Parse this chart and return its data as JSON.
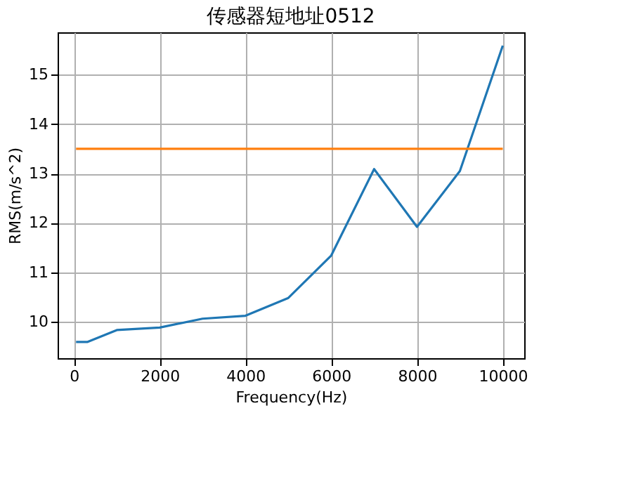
{
  "chart_data": {
    "type": "line",
    "title": "传感器短地址0512",
    "xlabel": "Frequency(Hz)",
    "ylabel": "RMS(m/s^2)",
    "xlim": [
      -380,
      10500
    ],
    "xticks": [
      0,
      2000,
      4000,
      6000,
      8000,
      10000
    ],
    "ylim": [
      9.26,
      15.86
    ],
    "yticks": [
      10,
      11,
      12,
      13,
      14,
      15
    ],
    "grid": true,
    "legend": false,
    "series": [
      {
        "color": "#1f77b4",
        "x": [
          50,
          320,
          1000,
          2000,
          3000,
          4000,
          5000,
          6000,
          7000,
          8000,
          9000,
          10000
        ],
        "values": [
          9.59,
          9.59,
          9.83,
          9.88,
          10.06,
          10.12,
          10.48,
          11.34,
          13.09,
          11.92,
          13.05,
          15.59
        ]
      },
      {
        "color": "#ff7f0e",
        "x": [
          50,
          10000
        ],
        "values": [
          13.5,
          13.5
        ]
      }
    ]
  }
}
